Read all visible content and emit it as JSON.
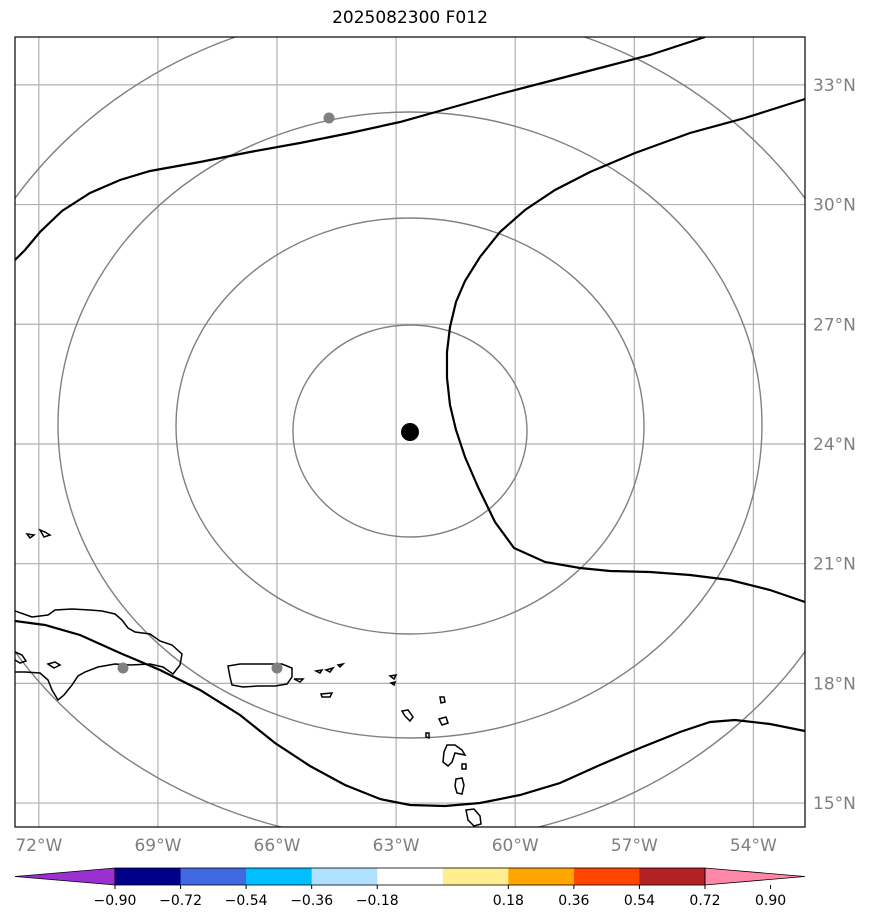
{
  "title": "2025082300 F012",
  "map": {
    "lon_labels": [
      "72°W",
      "69°W",
      "66°W",
      "63°W",
      "60°W",
      "57°W",
      "54°W"
    ],
    "lat_labels": [
      "33°N",
      "30°N",
      "27°N",
      "24°N",
      "21°N",
      "18°N",
      "15°N"
    ],
    "lons": [
      -72,
      -69,
      -66,
      -63,
      -60,
      -57,
      -54
    ],
    "lats": [
      33,
      30,
      27,
      24,
      21,
      18,
      15
    ],
    "extent": {
      "lon_min": -72.6,
      "lon_max": -52.7,
      "lat_min": 14.4,
      "lat_max": 34.2
    },
    "center": {
      "lon": -62.6,
      "lat": 24.4
    },
    "grid_color": "#b0b0b0",
    "ring_color": "#808080",
    "marker_color": "#000000",
    "point_color": "#808080"
  },
  "colorbar": {
    "labels": [
      "−0.90",
      "−0.72",
      "−0.54",
      "−0.36",
      "−0.18",
      "0.18",
      "0.36",
      "0.54",
      "0.72",
      "0.90"
    ],
    "colors": [
      "#9b30d0",
      "#00008b",
      "#4169e1",
      "#00bfff",
      "#b0e0ff",
      "#ffffff",
      "#ffee90",
      "#ffa500",
      "#ff4500",
      "#b22222",
      "#ff88aa"
    ]
  }
}
